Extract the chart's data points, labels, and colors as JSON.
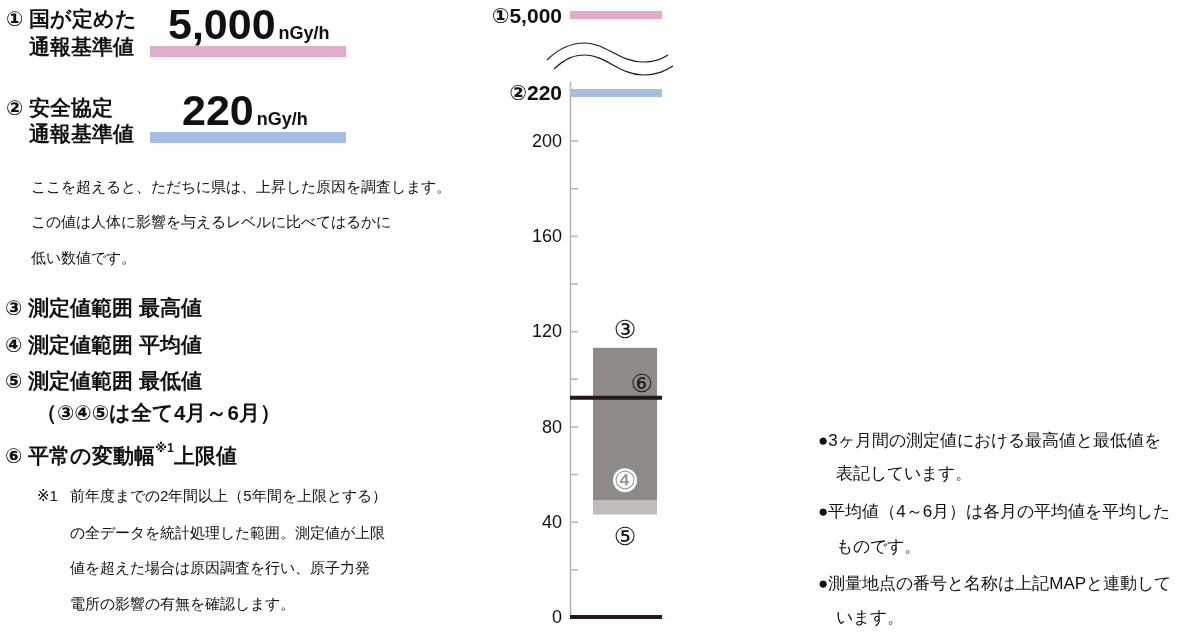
{
  "chart_data": {
    "type": "bar",
    "categories": [
      null
    ],
    "series": [
      {
        "color": "#c0bcbb",
        "base": [
          43
        ],
        "values": [
          6
        ]
      },
      {
        "color": "#8e8a87",
        "base": [
          49
        ],
        "values": [
          64
        ]
      }
    ],
    "ylim": [
      0,
      225
    ],
    "yticks": [
      0,
      {
        "value": 20,
        "label": null
      },
      40,
      {
        "value": 60,
        "label": null
      },
      80,
      {
        "value": 100,
        "label": null
      },
      120,
      {
        "value": 140,
        "label": null
      },
      160,
      {
        "value": 180,
        "label": null
      },
      200,
      {
        "value": 220,
        "label": "②220"
      }
    ],
    "ref_lines": [
      {
        "axis": "y",
        "value": 220,
        "color": "#a3bde3"
      },
      {
        "axis": "y",
        "value": 92,
        "label": "⑥",
        "color": "#231815"
      },
      {
        "axis": "y",
        "value": 0,
        "color": "#231815"
      }
    ],
    "annotations": [
      "① 国が定めた通報基準値",
      "5,000nGy/h",
      "② 安全協定通報基準値",
      "220nGy/h",
      "ここを超えると、ただちに県は、上昇した原因を調査します。この値は人体に影響を与えるレベルに比べてはるかに低い数値です。",
      "③ 測定値範囲 最高値",
      "④ 測定値範囲 平均値",
      "⑤ 測定値範囲 最低値",
      "（③④⑤は全て4月～6月）",
      "⑥ 平常の変動幅$^{※1}$上限値",
      "※1",
      "前年度までの2年間以上（5年間を上限とする）の全データを統計処理した範囲。測定値が上限値を超えた場合は原因調査を行い、原子力発電所の影響の有無を確認します。",
      "①5,000",
      {
        "text": "③",
        "y": 113
      },
      {
        "text": "④",
        "y": 49
      },
      {
        "text": "⑤",
        "y": 43
      },
      "●3ヶ月間の測定値における最高値と最低値を表記しています。",
      "●平均値（4～6月）は各月の平均値を平均したものです。",
      "●測量地点の番号と名称は上記MAPと連動しています。"
    ]
  }
}
